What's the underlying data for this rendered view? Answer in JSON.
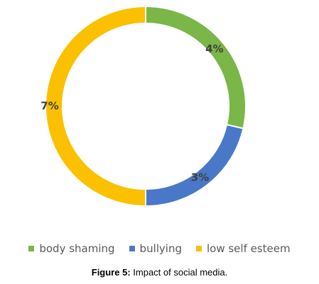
{
  "chart_data": {
    "type": "pie",
    "style": "donut",
    "categories": [
      "body shaming",
      "bullying",
      "low self esteem"
    ],
    "values": [
      4,
      3,
      7
    ],
    "labels": [
      "4%",
      "3%",
      "7%"
    ],
    "colors": [
      "#7ab648",
      "#4a78c8",
      "#fbc000"
    ],
    "legend_position": "bottom"
  },
  "caption": {
    "figure_label": "Figure 5:",
    "text": "Impact of social media."
  }
}
